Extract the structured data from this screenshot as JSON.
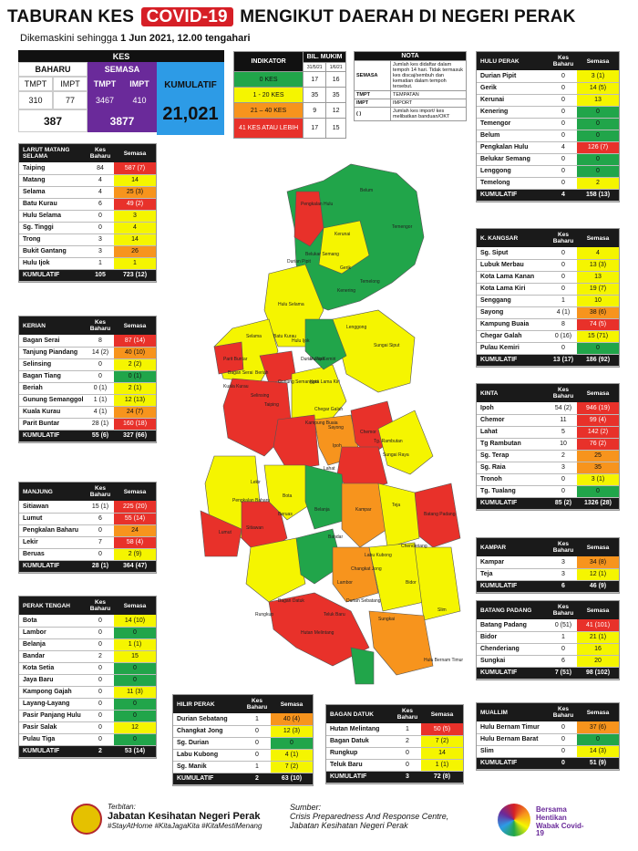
{
  "title": {
    "pre": "TABURAN KES",
    "covid": "COVID-19",
    "post": "MENGIKUT DAERAH DI NEGERI PERAK"
  },
  "subtitle": {
    "pre": "Dikemaskini sehingga",
    "date": "1 Jun 2021, 12.00 tengahari"
  },
  "kes": {
    "header": "KES",
    "baharu": "BAHARU",
    "semasa": "SEMASA",
    "tmpt": "TMPT",
    "impt": "IMPT",
    "b_tmpt": "310",
    "b_impt": "77",
    "s_tmpt": "3467",
    "s_impt": "410",
    "b_total": "387",
    "s_total": "3877",
    "kumulatif_label": "KUMULATIF",
    "kumulatif": "21,021"
  },
  "indicator": {
    "h1": "INDIKATOR",
    "h2": "BIL. MUKIM",
    "d1": "31/5/21",
    "d2": "1/6/21",
    "rows": [
      {
        "label": "0 KES",
        "a": "17",
        "b": "16"
      },
      {
        "label": "1 - 20 KES",
        "a": "35",
        "b": "35"
      },
      {
        "label": "21 – 40 KES",
        "a": "9",
        "b": "12"
      },
      {
        "label": "41 KES ATAU LEBIH",
        "a": "17",
        "b": "15"
      }
    ]
  },
  "nota": {
    "header": "NOTA",
    "semasa": "SEMASA",
    "semasa_desc": "Jumlah kes didaftar dalam tempoh 14 hari. Tidak termasuk kes discaj/sembuh dan kematian dalam tempoh tersebut.",
    "tmpt": "TMPT",
    "tmpt_desc": "TEMPATAN",
    "impt": "IMPT",
    "impt_desc": "IMPORT",
    "paren": "( )",
    "paren_desc": "Jumlah kes import/ kes melibatkan banduan/OKT"
  },
  "districts": {
    "lms": {
      "name": "LARUT MATANG SELAMA",
      "kb": "Kes Baharu",
      "sm": "Semasa",
      "rows": [
        [
          "Taiping",
          "84",
          "587 (7)",
          "r"
        ],
        [
          "Matang",
          "4",
          "14",
          "y"
        ],
        [
          "Selama",
          "4",
          "25 (3)",
          "o"
        ],
        [
          "Batu Kurau",
          "6",
          "49 (2)",
          "r"
        ],
        [
          "Hulu Selama",
          "0",
          "3",
          "y"
        ],
        [
          "Sg. Tinggi",
          "0",
          "4",
          "y"
        ],
        [
          "Trong",
          "3",
          "14",
          "y"
        ],
        [
          "Bukit Gantang",
          "3",
          "26",
          "o"
        ],
        [
          "Hulu Ijok",
          "1",
          "1",
          "y"
        ]
      ],
      "tot": [
        "KUMULATIF",
        "105",
        "723 (12)"
      ]
    },
    "kerian": {
      "name": "KERIAN",
      "kb": "Kes Baharu",
      "sm": "Semasa",
      "rows": [
        [
          "Bagan Serai",
          "8",
          "87 (14)",
          "r"
        ],
        [
          "Tanjung Piandang",
          "14 (2)",
          "40 (10)",
          "o"
        ],
        [
          "Selinsing",
          "0",
          "2 (2)",
          "y"
        ],
        [
          "Bagan Tiang",
          "0",
          "0 (1)",
          "g"
        ],
        [
          "Beriah",
          "0 (1)",
          "2 (1)",
          "y"
        ],
        [
          "Gunung Semanggol",
          "1 (1)",
          "12 (13)",
          "y"
        ],
        [
          "Kuala Kurau",
          "4 (1)",
          "24 (7)",
          "o"
        ],
        [
          "Parit Buntar",
          "28 (1)",
          "160 (18)",
          "r"
        ]
      ],
      "tot": [
        "KUMULATIF",
        "55 (6)",
        "327 (66)"
      ]
    },
    "manjung": {
      "name": "MANJUNG",
      "kb": "Kes Baharu",
      "sm": "Semasa",
      "rows": [
        [
          "Sitiawan",
          "15 (1)",
          "225 (20)",
          "r"
        ],
        [
          "Lumut",
          "6",
          "55 (14)",
          "r"
        ],
        [
          "Pengkalan Baharu",
          "0",
          "24",
          "o"
        ],
        [
          "Lekir",
          "7",
          "58 (4)",
          "r"
        ],
        [
          "Beruas",
          "0",
          "2 (9)",
          "y"
        ]
      ],
      "tot": [
        "KUMULATIF",
        "28 (1)",
        "364 (47)"
      ]
    },
    "perak_tengah": {
      "name": "PERAK TENGAH",
      "kb": "Kes Baharu",
      "sm": "Semasa",
      "rows": [
        [
          "Bota",
          "0",
          "14 (10)",
          "y"
        ],
        [
          "Lambor",
          "0",
          "0",
          "g"
        ],
        [
          "Belanja",
          "0",
          "1 (1)",
          "y"
        ],
        [
          "Bandar",
          "2",
          "15",
          "y"
        ],
        [
          "Kota Setia",
          "0",
          "0",
          "g"
        ],
        [
          "Jaya Baru",
          "0",
          "0",
          "g"
        ],
        [
          "Kampong Gajah",
          "0",
          "11 (3)",
          "y"
        ],
        [
          "Layang-Layang",
          "0",
          "0",
          "g"
        ],
        [
          "Pasir Panjang Hulu",
          "0",
          "0",
          "g"
        ],
        [
          "Pasir Salak",
          "0",
          "12",
          "y"
        ],
        [
          "Pulau Tiga",
          "0",
          "0",
          "g"
        ]
      ],
      "tot": [
        "KUMULATIF",
        "2",
        "53 (14)"
      ]
    },
    "hulu_perak": {
      "name": "HULU PERAK",
      "kb": "Kes Baharu",
      "sm": "Semasa",
      "rows": [
        [
          "Durian Pipit",
          "0",
          "3 (1)",
          "y"
        ],
        [
          "Gerik",
          "0",
          "14 (5)",
          "y"
        ],
        [
          "Kerunai",
          "0",
          "13",
          "y"
        ],
        [
          "Kenering",
          "0",
          "0",
          "g"
        ],
        [
          "Temengor",
          "0",
          "0",
          "g"
        ],
        [
          "Belum",
          "0",
          "0",
          "g"
        ],
        [
          "Pengkalan Hulu",
          "4",
          "126 (7)",
          "r"
        ],
        [
          "Belukar Semang",
          "0",
          "0",
          "g"
        ],
        [
          "Lenggong",
          "0",
          "0",
          "g"
        ],
        [
          "Temelong",
          "0",
          "2",
          "y"
        ]
      ],
      "tot": [
        "KUMULATIF",
        "4",
        "158 (13)"
      ]
    },
    "kangsar": {
      "name": "K. KANGSAR",
      "kb": "Kes Baharu",
      "sm": "Semasa",
      "rows": [
        [
          "Sg. Siput",
          "0",
          "4",
          "y"
        ],
        [
          "Lubuk Merbau",
          "0",
          "13 (3)",
          "y"
        ],
        [
          "Kota Lama Kanan",
          "0",
          "13",
          "y"
        ],
        [
          "Kota Lama Kiri",
          "0",
          "19 (7)",
          "y"
        ],
        [
          "Senggang",
          "1",
          "10",
          "y"
        ],
        [
          "Sayong",
          "4 (1)",
          "38 (6)",
          "o"
        ],
        [
          "Kampung Buaia",
          "8",
          "74 (5)",
          "r"
        ],
        [
          "Chegar Galah",
          "0 (16)",
          "15 (71)",
          "y"
        ],
        [
          "Pulau Kemiri",
          "0",
          "0",
          "g"
        ]
      ],
      "tot": [
        "KUMULATIF",
        "13 (17)",
        "186 (92)"
      ]
    },
    "kinta": {
      "name": "KINTA",
      "kb": "Kes Baharu",
      "sm": "Semasa",
      "rows": [
        [
          "Ipoh",
          "54 (2)",
          "946 (19)",
          "r"
        ],
        [
          "Chemor",
          "11",
          "99 (4)",
          "r"
        ],
        [
          "Lahat",
          "5",
          "142 (2)",
          "r"
        ],
        [
          "Tg Rambutan",
          "10",
          "76 (2)",
          "r"
        ],
        [
          "Sg. Terap",
          "2",
          "25",
          "o"
        ],
        [
          "Sg. Raia",
          "3",
          "35",
          "o"
        ],
        [
          "Tronoh",
          "0",
          "3 (1)",
          "y"
        ],
        [
          "Tg. Tualang",
          "0",
          "0",
          "g"
        ]
      ],
      "tot": [
        "KUMULATIF",
        "85 (2)",
        "1326 (28)"
      ]
    },
    "kampar": {
      "name": "KAMPAR",
      "kb": "Kes Baharu",
      "sm": "Semasa",
      "rows": [
        [
          "Kampar",
          "3",
          "34 (8)",
          "o"
        ],
        [
          "Teja",
          "3",
          "12 (1)",
          "y"
        ]
      ],
      "tot": [
        "KUMULATIF",
        "6",
        "46 (9)"
      ]
    },
    "batang_padang": {
      "name": "BATANG PADANG",
      "kb": "Kes Baharu",
      "sm": "Semasa",
      "rows": [
        [
          "Batang Padang",
          "0 (51)",
          "41 (101)",
          "r"
        ],
        [
          "Bidor",
          "1",
          "21 (1)",
          "y"
        ],
        [
          "Chenderiang",
          "0",
          "16",
          "y"
        ],
        [
          "Sungkai",
          "6",
          "20",
          "y"
        ]
      ],
      "tot": [
        "KUMULATIF",
        "7 (51)",
        "98 (102)"
      ]
    },
    "hilir_perak": {
      "name": "HILIR PERAK",
      "kb": "Kes Baharu",
      "sm": "Semasa",
      "rows": [
        [
          "Durian Sebatang",
          "1",
          "40 (4)",
          "o"
        ],
        [
          "Changkat Jong",
          "0",
          "12 (3)",
          "y"
        ],
        [
          "Sg. Durian",
          "0",
          "0",
          "g"
        ],
        [
          "Labu Kubong",
          "0",
          "4 (1)",
          "y"
        ],
        [
          "Sg. Manik",
          "1",
          "7 (2)",
          "y"
        ]
      ],
      "tot": [
        "KUMULATIF",
        "2",
        "63 (10)"
      ]
    },
    "bagan_datuk": {
      "name": "BAGAN DATUK",
      "kb": "Kes Baharu",
      "sm": "Semasa",
      "rows": [
        [
          "Hutan Melintang",
          "1",
          "50 (5)",
          "r"
        ],
        [
          "Bagan Datuk",
          "2",
          "7 (2)",
          "y"
        ],
        [
          "Rungkup",
          "0",
          "14",
          "y"
        ],
        [
          "Teluk Baru",
          "0",
          "1 (1)",
          "y"
        ]
      ],
      "tot": [
        "KUMULATIF",
        "3",
        "72 (8)"
      ]
    },
    "muallim": {
      "name": "MUALLIM",
      "kb": "Kes Baharu",
      "sm": "Semasa",
      "rows": [
        [
          "Hulu Bernam Timur",
          "0",
          "37 (6)",
          "o"
        ],
        [
          "Hulu Bernam Barat",
          "0",
          "0",
          "g"
        ],
        [
          "Slim",
          "0",
          "14 (3)",
          "y"
        ]
      ],
      "tot": [
        "KUMULATIF",
        "0",
        "51 (9)"
      ]
    }
  },
  "map_labels": [
    "Pengkalan Hulu",
    "Kerunai",
    "Belukar Semang",
    "Gerik",
    "Temengor",
    "Durian Pipit",
    "Belum",
    "Kenering",
    "Temelong",
    "Lenggong",
    "Hulu Selama",
    "Batu Kurau",
    "Selama",
    "Hulu Ijok",
    "Parit Buntar",
    "Bagan Serai",
    "Kuala Kurau",
    "Beriah",
    "Gunung Semanggol",
    "Selinsing",
    "Pulau Kemiri",
    "Durian Pipit",
    "Sungai Siput",
    "Taiping",
    "Kota Lama Kiri",
    "Chegar Galah",
    "Kampung Buaia",
    "Sayong",
    "Chemor",
    "Tg. Rambutan",
    "Ipoh",
    "Sungai Raya",
    "Lahat",
    "Teja",
    "Kampar",
    "Bota",
    "Lekir",
    "Sitiawan",
    "Lumut",
    "Beruas",
    "Chenderiang",
    "Batang Padang",
    "Bidor",
    "Sungkai",
    "Slim",
    "Hutan Melintang",
    "Hulu Bernam Timur",
    "Durian Sebatang",
    "Rungkup",
    "Bagan Datuk",
    "Teluk Baru",
    "Changkat Jong",
    "Labu Kubong",
    "Pengkalan Baharu",
    "Belanja",
    "Lambor",
    "Bandar"
  ],
  "footer": {
    "terbitan": "Terbitan:",
    "org": "Jabatan Kesihatan Negeri Perak",
    "tags": "#StayAtHome #KitaJagaKita #KitaMestiMenang",
    "sumber": "Sumber:",
    "src1": "Crisis Preparedness And Response Centre,",
    "src2": "Jabatan Kesihatan Negeri Perak",
    "logo_text": "Bersama Hentikan Wabak Covid-19"
  }
}
